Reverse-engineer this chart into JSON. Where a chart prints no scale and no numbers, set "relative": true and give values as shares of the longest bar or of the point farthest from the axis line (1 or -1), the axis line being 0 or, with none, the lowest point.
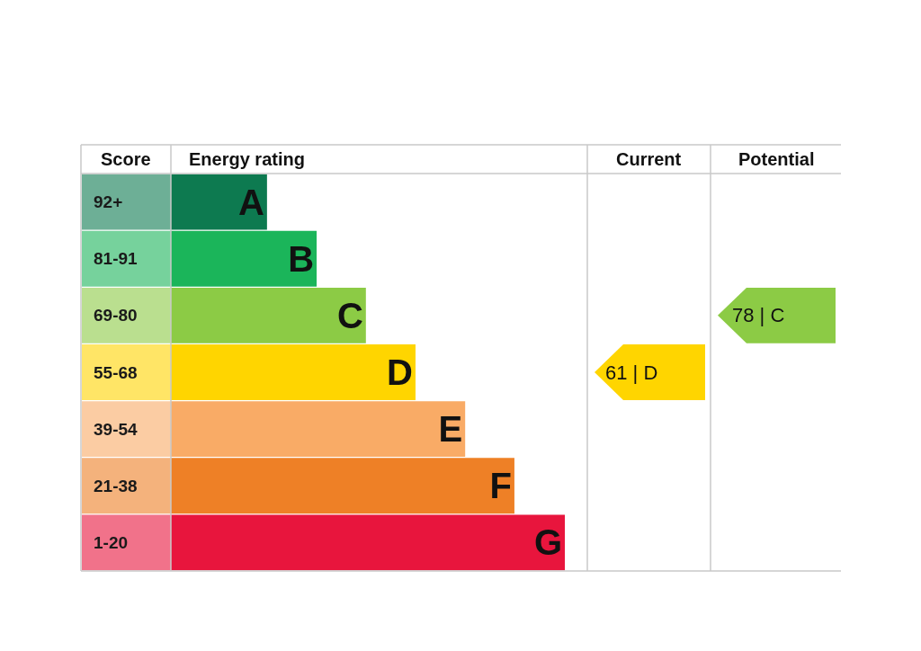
{
  "chart_data": {
    "type": "bar",
    "orientation": "horizontal",
    "relative": true,
    "categories": [
      "A",
      "B",
      "C",
      "D",
      "E",
      "F",
      "G"
    ],
    "values": [
      0.244,
      0.37,
      0.495,
      0.621,
      0.747,
      0.872,
      1
    ],
    "colors": [
      "#0d7a50",
      "#1bb55a",
      "#8ccb45",
      "#ffd500",
      "#f9ab66",
      "#ee8026",
      "#e8153d"
    ],
    "annotations": [
      "Score",
      "Energy rating",
      "Current",
      "Potential",
      "92+",
      "81-91",
      "69-80",
      "55-68",
      "39-54",
      "21-38",
      "1-20",
      "61 | D",
      "78 | C"
    ]
  }
}
